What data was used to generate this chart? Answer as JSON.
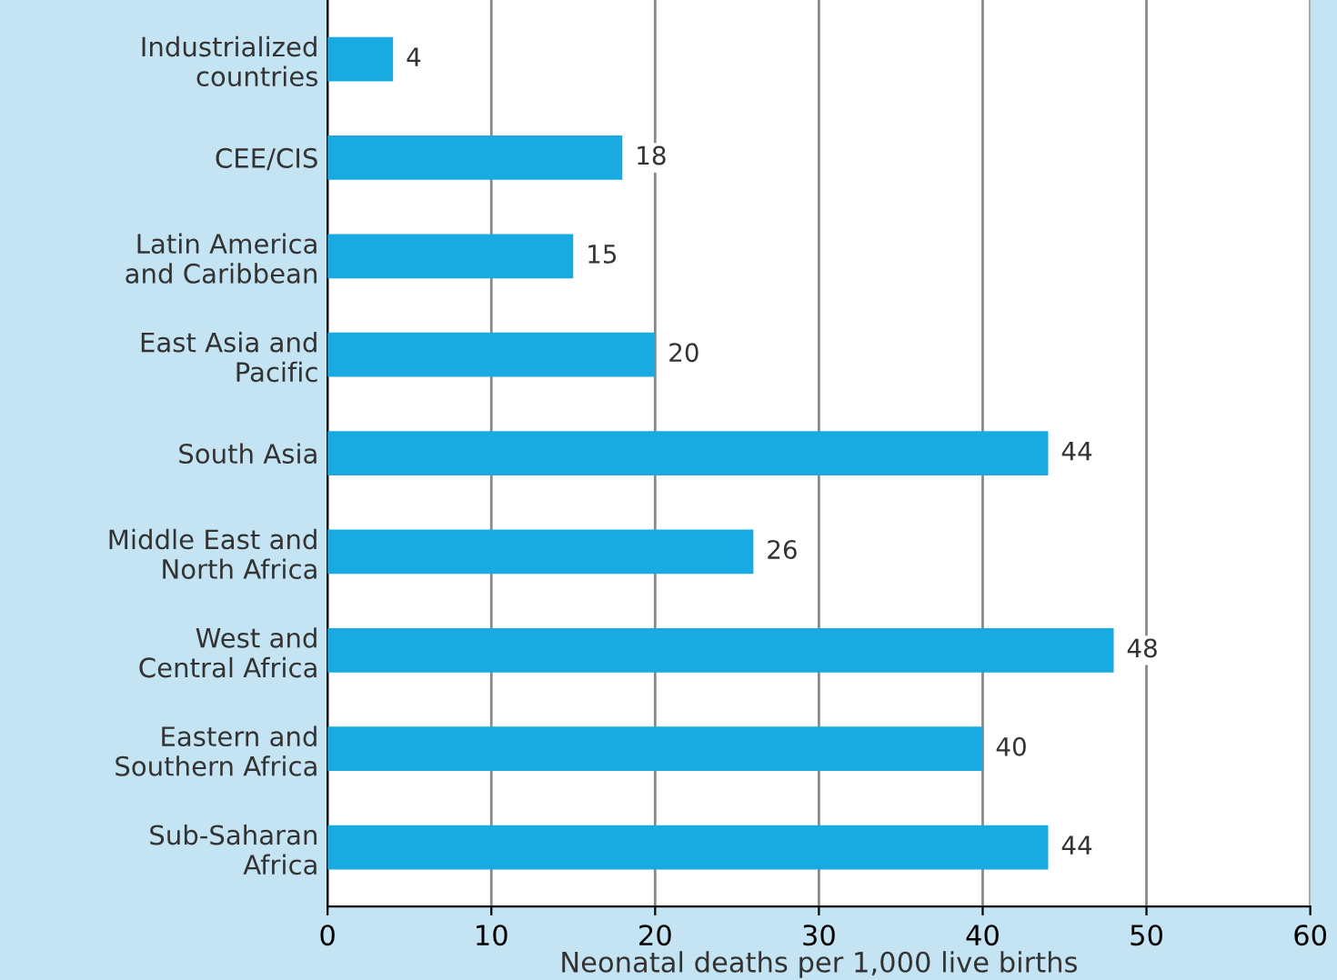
{
  "chart_data": {
    "type": "bar",
    "orientation": "horizontal",
    "xlabel": "Neonatal deaths per 1,000 live births",
    "categories": [
      "Industrialized\ncountries",
      "CEE/CIS",
      "Latin America\nand Caribbean",
      "East Asia and\nPacific",
      "South Asia",
      "Middle East and\nNorth Africa",
      "West and\nCentral Africa",
      "Eastern and\nSouthern Africa",
      "Sub-Saharan\nAfrica"
    ],
    "values": [
      4,
      18,
      15,
      20,
      44,
      26,
      48,
      40,
      44
    ],
    "color": "#1aaae2",
    "data_labels": true,
    "xlim": [
      0,
      60
    ],
    "xticks": [
      0,
      10,
      20,
      30,
      40,
      50,
      60
    ],
    "grid": "x",
    "legend": false
  }
}
